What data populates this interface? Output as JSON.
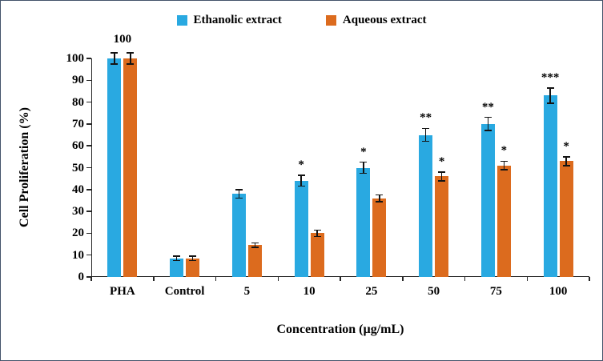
{
  "chart_data": {
    "type": "bar",
    "title": "",
    "categories": [
      "PHA",
      "Control",
      "5",
      "10",
      "25",
      "50",
      "75",
      "100"
    ],
    "series": [
      {
        "name": "Ethanolic extract",
        "color": "#29A9E1",
        "values": [
          100,
          8.5,
          38,
          44,
          50,
          65,
          70,
          83
        ],
        "errors": [
          2.5,
          1,
          2,
          2.5,
          2.5,
          3,
          3,
          3.5
        ],
        "significance": [
          "",
          "",
          "",
          "*",
          "*",
          "**",
          "**",
          "***"
        ]
      },
      {
        "name": "Aqueous extract",
        "color": "#DC6B1E",
        "values": [
          100,
          8.5,
          14.5,
          20,
          36,
          46,
          51,
          53
        ],
        "errors": [
          2.5,
          1,
          1,
          1.5,
          1.5,
          2,
          2,
          2
        ],
        "significance": [
          "",
          "",
          "",
          "",
          "",
          "*",
          "*",
          "*"
        ]
      }
    ],
    "annotations": [
      {
        "category_index": 0,
        "text": "100"
      }
    ],
    "xlabel": "Concentration (µg/mL)",
    "ylabel": "Cell Proliferation (%)",
    "ylim": [
      0,
      100
    ],
    "yticks": [
      0,
      10,
      20,
      30,
      40,
      50,
      60,
      70,
      80,
      90,
      100
    ],
    "grid": false,
    "legend_position": "top",
    "error_bars": true
  }
}
